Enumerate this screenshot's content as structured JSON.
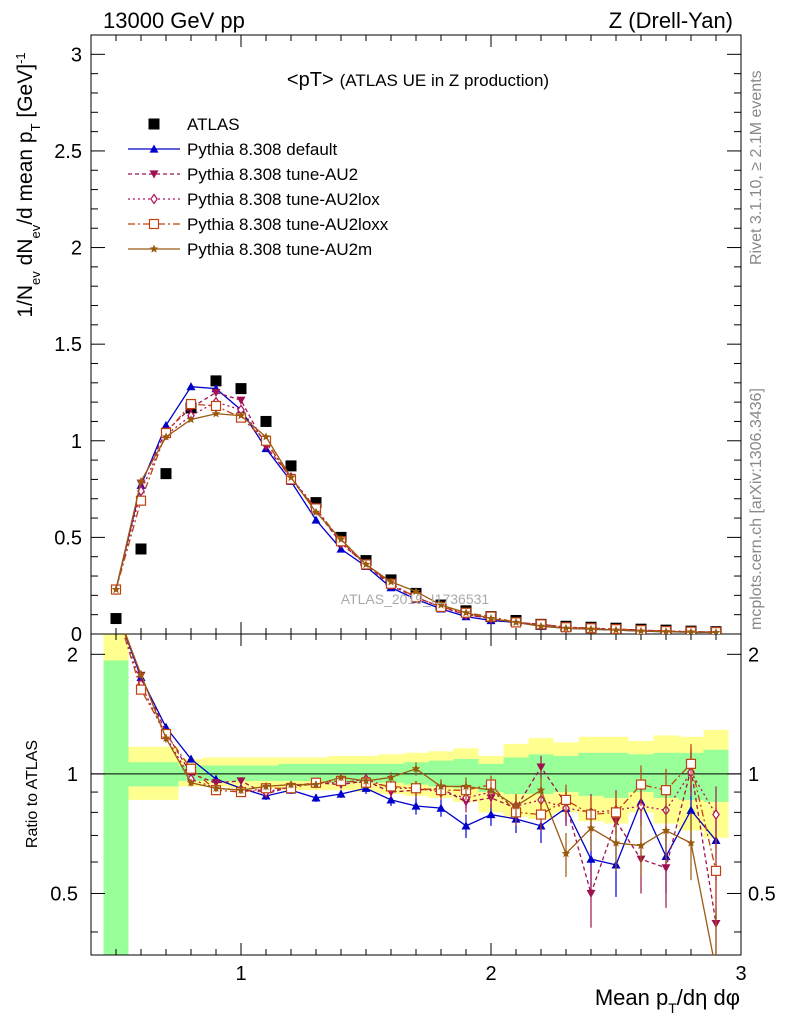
{
  "header": {
    "left": "13000 GeV pp",
    "right": "Z (Drell-Yan)"
  },
  "side_text": {
    "rivet": "Rivet 3.1.10, ≥ 2.1M events",
    "mcplots": "mcplots.cern.ch [arXiv:1306.3436]"
  },
  "chart_data": [
    {
      "type": "scatter",
      "title_main": "<pT>",
      "title_sub": "(ATLAS UE in Z production)",
      "watermark": "ATLAS_2019_I1736531",
      "ylabel": "1/N_ev dN_ev/d mean p_T [GeV]^-1",
      "xlim": [
        0.4,
        3.0
      ],
      "ylim": [
        0,
        3.1
      ],
      "yticks": [
        "0",
        "0.5",
        "1",
        "1.5",
        "2",
        "2.5",
        "3"
      ],
      "x": [
        0.5,
        0.6,
        0.7,
        0.8,
        0.9,
        1.0,
        1.1,
        1.2,
        1.3,
        1.4,
        1.5,
        1.6,
        1.7,
        1.8,
        1.9,
        2.0,
        2.1,
        2.2,
        2.3,
        2.4,
        2.5,
        2.6,
        2.7,
        2.8,
        2.9
      ],
      "series": [
        {
          "name": "ATLAS",
          "color": "#000000",
          "marker": "square",
          "values": [
            0.08,
            0.44,
            0.83,
            1.17,
            1.31,
            1.27,
            1.1,
            0.87,
            0.68,
            0.5,
            0.38,
            0.28,
            0.21,
            0.15,
            0.12,
            0.09,
            0.07,
            0.05,
            0.04,
            0.035,
            0.03,
            0.025,
            0.02,
            0.015,
            0.012
          ]
        },
        {
          "name": "Pythia 8.308 default",
          "color": "#0000cc",
          "marker": "triangle-up",
          "dash": "",
          "values": [
            0.23,
            0.77,
            1.08,
            1.28,
            1.27,
            1.16,
            0.96,
            0.79,
            0.59,
            0.44,
            0.35,
            0.24,
            0.18,
            0.13,
            0.09,
            0.07,
            0.06,
            0.04,
            0.03,
            0.025,
            0.02,
            0.015,
            0.012,
            0.01,
            0.008
          ]
        },
        {
          "name": "Pythia 8.308 tune-AU2",
          "color": "#a01050",
          "marker": "triangle-down",
          "dash": "4,3",
          "values": [
            0.23,
            0.78,
            1.05,
            1.17,
            1.25,
            1.21,
            0.97,
            0.81,
            0.64,
            0.47,
            0.36,
            0.25,
            0.19,
            0.14,
            0.1,
            0.08,
            0.06,
            0.05,
            0.035,
            0.03,
            0.025,
            0.02,
            0.015,
            0.012,
            0.01
          ]
        },
        {
          "name": "Pythia 8.308 tune-AU2lox",
          "color": "#b01060",
          "marker": "diamond",
          "dash": "2,3",
          "values": [
            0.23,
            0.74,
            1.03,
            1.13,
            1.2,
            1.16,
            0.99,
            0.81,
            0.65,
            0.47,
            0.36,
            0.26,
            0.19,
            0.14,
            0.1,
            0.08,
            0.06,
            0.05,
            0.035,
            0.03,
            0.025,
            0.02,
            0.015,
            0.012,
            0.01
          ]
        },
        {
          "name": "Pythia 8.308 tune-AU2loxx",
          "color": "#c04010",
          "marker": "square-open",
          "dash": "7,3,2,3",
          "values": [
            0.23,
            0.69,
            1.04,
            1.19,
            1.18,
            1.12,
            1.0,
            0.8,
            0.65,
            0.48,
            0.36,
            0.26,
            0.19,
            0.14,
            0.11,
            0.09,
            0.06,
            0.05,
            0.035,
            0.03,
            0.025,
            0.02,
            0.015,
            0.012,
            0.01
          ]
        },
        {
          "name": "Pythia 8.308 tune-AU2m",
          "color": "#9a5a10",
          "marker": "star",
          "dash": "",
          "values": [
            0.23,
            0.79,
            1.02,
            1.11,
            1.14,
            1.13,
            1.02,
            0.81,
            0.63,
            0.49,
            0.36,
            0.27,
            0.22,
            0.15,
            0.11,
            0.08,
            0.06,
            0.04,
            0.03,
            0.025,
            0.02,
            0.015,
            0.012,
            0.01,
            0.008
          ]
        }
      ]
    },
    {
      "type": "line",
      "ylabel": "Ratio to ATLAS",
      "xlabel": "Mean p_T/dη dφ",
      "xlim": [
        0.4,
        3.0
      ],
      "ylim": [
        0.35,
        2.25
      ],
      "xticks": [
        "1",
        "2",
        "3"
      ],
      "yticks": [
        "0.5",
        "1",
        "2"
      ],
      "x": [
        0.5,
        0.6,
        0.7,
        0.8,
        0.9,
        1.0,
        1.1,
        1.2,
        1.3,
        1.4,
        1.5,
        1.6,
        1.7,
        1.8,
        1.9,
        2.0,
        2.1,
        2.2,
        2.3,
        2.4,
        2.5,
        2.6,
        2.7,
        2.8,
        2.9
      ],
      "band_yellow": [
        [
          0.3,
          2.3
        ],
        [
          0.86,
          1.17
        ],
        [
          0.86,
          1.17
        ],
        [
          0.93,
          1.09
        ],
        [
          0.93,
          1.1
        ],
        [
          0.92,
          1.1
        ],
        [
          0.92,
          1.1
        ],
        [
          0.91,
          1.1
        ],
        [
          0.91,
          1.1
        ],
        [
          0.91,
          1.11
        ],
        [
          0.9,
          1.11
        ],
        [
          0.89,
          1.12
        ],
        [
          0.88,
          1.13
        ],
        [
          0.87,
          1.14
        ],
        [
          0.85,
          1.16
        ],
        [
          0.8,
          1.11
        ],
        [
          0.78,
          1.19
        ],
        [
          0.77,
          1.23
        ],
        [
          0.8,
          1.2
        ],
        [
          0.76,
          1.24
        ],
        [
          0.75,
          1.24
        ],
        [
          0.8,
          1.21
        ],
        [
          0.75,
          1.25
        ],
        [
          0.72,
          1.24
        ],
        [
          0.69,
          1.29
        ]
      ],
      "band_green": [
        [
          0.3,
          1.93
        ],
        [
          0.93,
          1.07
        ],
        [
          0.93,
          1.07
        ],
        [
          0.96,
          1.05
        ],
        [
          0.96,
          1.05
        ],
        [
          0.96,
          1.05
        ],
        [
          0.96,
          1.05
        ],
        [
          0.96,
          1.06
        ],
        [
          0.96,
          1.06
        ],
        [
          0.95,
          1.06
        ],
        [
          0.95,
          1.06
        ],
        [
          0.95,
          1.06
        ],
        [
          0.94,
          1.07
        ],
        [
          0.93,
          1.08
        ],
        [
          0.92,
          1.09
        ],
        [
          0.9,
          1.06
        ],
        [
          0.89,
          1.1
        ],
        [
          0.89,
          1.12
        ],
        [
          0.9,
          1.11
        ],
        [
          0.88,
          1.13
        ],
        [
          0.87,
          1.13
        ],
        [
          0.9,
          1.12
        ],
        [
          0.87,
          1.13
        ],
        [
          0.86,
          1.13
        ],
        [
          0.85,
          1.15
        ]
      ],
      "series": [
        {
          "name": "Pythia 8.308 default",
          "values": [
            2.6,
            1.75,
            1.31,
            1.09,
            0.97,
            0.92,
            0.88,
            0.91,
            0.87,
            0.89,
            0.92,
            0.86,
            0.83,
            0.82,
            0.74,
            0.79,
            0.77,
            0.74,
            0.82,
            0.61,
            0.59,
            0.85,
            0.62,
            0.81,
            0.68
          ],
          "err": [
            0.1,
            0.04,
            0.03,
            0.02,
            0.02,
            0.02,
            0.02,
            0.02,
            0.02,
            0.02,
            0.03,
            0.03,
            0.04,
            0.04,
            0.05,
            0.05,
            0.06,
            0.07,
            0.08,
            0.09,
            0.1,
            0.11,
            0.12,
            0.13,
            0.14
          ]
        },
        {
          "name": "Pythia 8.308 tune-AU2",
          "values": [
            2.6,
            1.77,
            1.27,
            1.0,
            0.95,
            0.96,
            0.89,
            0.93,
            0.95,
            0.94,
            0.96,
            0.9,
            0.91,
            0.92,
            0.85,
            0.87,
            0.82,
            1.04,
            0.84,
            0.5,
            0.76,
            0.61,
            0.58,
            1.03,
            0.42
          ],
          "err": [
            0.1,
            0.04,
            0.03,
            0.02,
            0.02,
            0.02,
            0.02,
            0.02,
            0.02,
            0.02,
            0.03,
            0.03,
            0.04,
            0.04,
            0.05,
            0.05,
            0.06,
            0.07,
            0.08,
            0.09,
            0.1,
            0.11,
            0.12,
            0.13,
            0.14
          ]
        },
        {
          "name": "Pythia 8.308 tune-AU2lox",
          "values": [
            2.6,
            1.68,
            1.24,
            0.97,
            0.92,
            0.91,
            0.9,
            0.93,
            0.95,
            0.95,
            0.97,
            0.92,
            0.92,
            0.9,
            0.87,
            0.9,
            0.83,
            0.86,
            0.82,
            0.8,
            0.81,
            0.83,
            0.81,
            1.01,
            0.79
          ],
          "err": [
            0.1,
            0.04,
            0.03,
            0.02,
            0.02,
            0.02,
            0.02,
            0.02,
            0.02,
            0.02,
            0.03,
            0.03,
            0.04,
            0.04,
            0.05,
            0.05,
            0.06,
            0.07,
            0.08,
            0.09,
            0.1,
            0.11,
            0.12,
            0.13,
            0.14
          ]
        },
        {
          "name": "Pythia 8.308 tune-AU2loxx",
          "values": [
            2.6,
            1.63,
            1.26,
            1.03,
            0.91,
            0.9,
            0.92,
            0.92,
            0.95,
            0.96,
            0.95,
            0.93,
            0.92,
            0.91,
            0.91,
            0.94,
            0.8,
            0.79,
            0.86,
            0.79,
            0.8,
            0.94,
            0.91,
            1.06,
            0.57
          ],
          "err": [
            0.1,
            0.04,
            0.03,
            0.02,
            0.02,
            0.02,
            0.02,
            0.02,
            0.02,
            0.02,
            0.03,
            0.03,
            0.04,
            0.04,
            0.05,
            0.05,
            0.06,
            0.07,
            0.08,
            0.09,
            0.1,
            0.11,
            0.12,
            0.13,
            0.14
          ]
        },
        {
          "name": "Pythia 8.308 tune-AU2m",
          "values": [
            2.6,
            1.78,
            1.23,
            0.95,
            0.92,
            0.91,
            0.93,
            0.94,
            0.94,
            0.98,
            0.96,
            0.98,
            1.03,
            0.93,
            0.93,
            0.91,
            0.83,
            0.91,
            0.63,
            0.73,
            0.67,
            0.66,
            0.72,
            0.67,
            0.32
          ],
          "err": [
            0.1,
            0.04,
            0.03,
            0.02,
            0.02,
            0.02,
            0.02,
            0.02,
            0.02,
            0.02,
            0.03,
            0.03,
            0.04,
            0.04,
            0.05,
            0.05,
            0.06,
            0.07,
            0.08,
            0.09,
            0.1,
            0.11,
            0.12,
            0.13,
            0.14
          ]
        }
      ]
    }
  ]
}
